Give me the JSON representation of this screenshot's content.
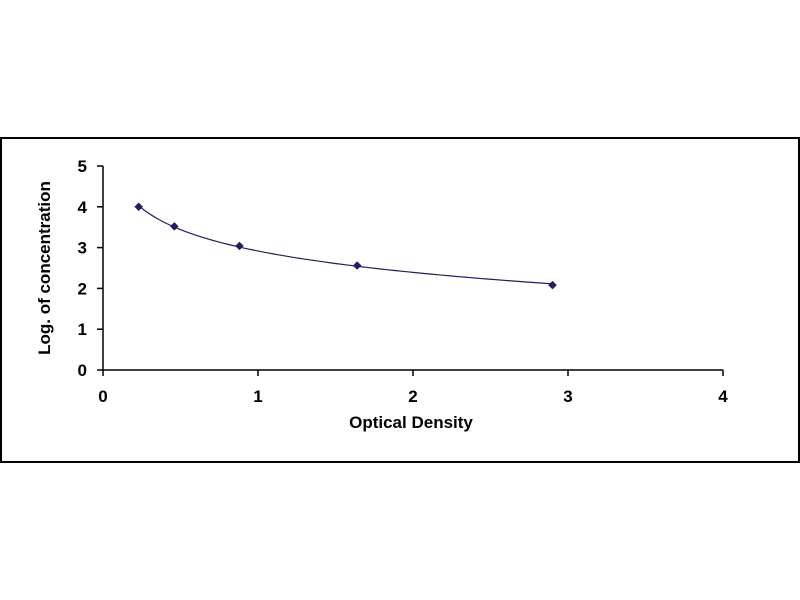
{
  "chart_data": {
    "type": "scatter",
    "title": "",
    "xlabel": "Optical Density",
    "ylabel": "Log. of concentration",
    "xlim": [
      0,
      4
    ],
    "ylim": [
      0,
      5
    ],
    "x_ticks": [
      "0",
      "1",
      "2",
      "3",
      "4"
    ],
    "y_ticks": [
      "0",
      "1",
      "2",
      "3",
      "4",
      "5"
    ],
    "grid": false,
    "legend": "none",
    "series": [
      {
        "x": [
          0.23,
          0.46,
          0.88,
          1.64,
          2.9
        ],
        "y": [
          4.0,
          3.52,
          3.04,
          2.56,
          2.08
        ],
        "trendline": "logarithmic"
      }
    ],
    "colors": {
      "marker": "#1f1f5c",
      "curve": "#1f1f5c",
      "axis": "#000000"
    }
  }
}
